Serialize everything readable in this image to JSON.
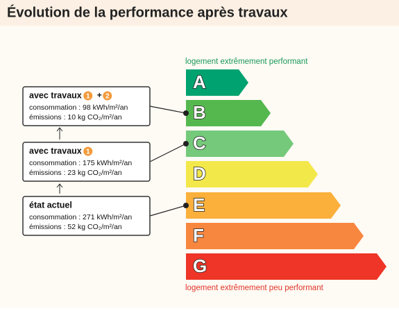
{
  "header": {
    "title": "Évolution de la performance après travaux"
  },
  "scale": {
    "top_label": "logement extrêmement performant",
    "bottom_label": "logement extrêmement peu performant",
    "classes": [
      {
        "letter": "A",
        "color": "#00a26f"
      },
      {
        "letter": "B",
        "color": "#55b84f"
      },
      {
        "letter": "C",
        "color": "#75c97a"
      },
      {
        "letter": "D",
        "color": "#f3e84a"
      },
      {
        "letter": "E",
        "color": "#fbb03b"
      },
      {
        "letter": "F",
        "color": "#f7873f"
      },
      {
        "letter": "G",
        "color": "#ee3527"
      }
    ]
  },
  "steps": [
    {
      "title": "avec travaux",
      "badges": [
        "1",
        "2"
      ],
      "joiner": "+",
      "consumption": "consommation : 98 kWh/m²/an",
      "emissions": "émissions : 10 kg CO₂/m²/an",
      "class_index": 1
    },
    {
      "title": "avec travaux",
      "badges": [
        "1"
      ],
      "consumption": "consommation : 175 kWh/m²/an",
      "emissions": "émissions : 23 kg CO₂/m²/an",
      "class_index": 2
    },
    {
      "title": "état actuel",
      "badges": [],
      "consumption": "consommation : 271 kWh/m²/an",
      "emissions": "émissions : 52 kg CO₂/m²/an",
      "class_index": 4
    }
  ]
}
